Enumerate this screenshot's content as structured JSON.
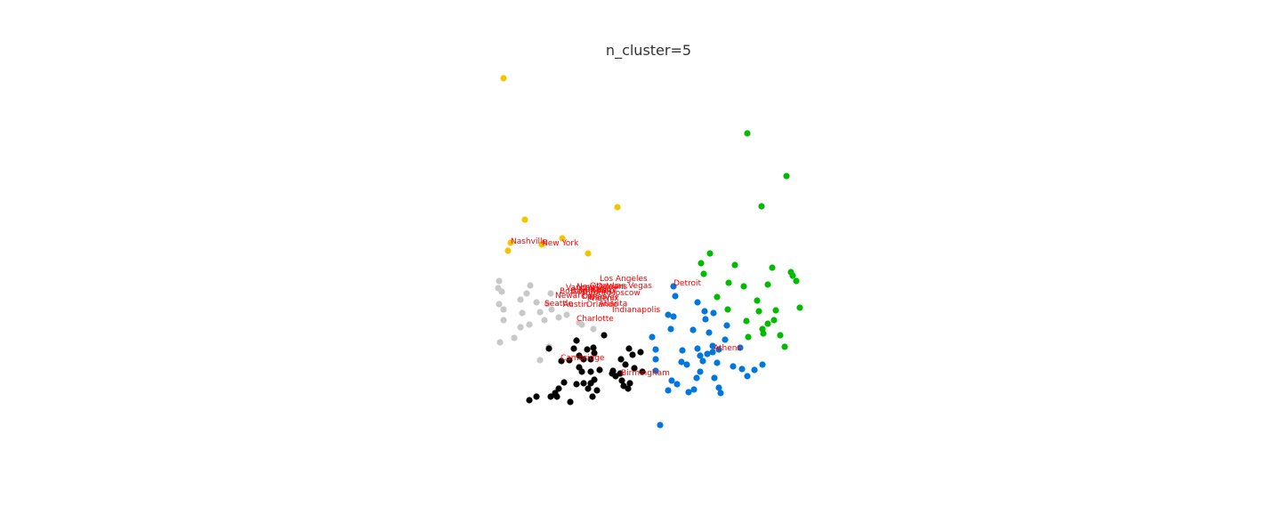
{
  "chart_data": {
    "type": "scatter",
    "title": "n_cluster=5",
    "xlabel": "",
    "ylabel": "",
    "axes_visible": false,
    "grid": false,
    "legend": "none",
    "xlim": [
      555,
      905
    ],
    "ylim": [
      485,
      80
    ],
    "label_color": "#ff0000",
    "series": [
      {
        "color": "#f5c400",
        "points": [
          [
            566,
            88
          ],
          [
            590,
            247
          ],
          [
            694,
            233
          ],
          [
            632,
            268
          ],
          [
            661,
            285
          ],
          [
            609,
            275
          ],
          [
            571,
            282
          ],
          [
            574,
            273
          ]
        ]
      },
      {
        "color": "#00bb00",
        "points": [
          [
            840,
            150
          ],
          [
            884,
            198
          ],
          [
            856,
            232
          ],
          [
            798,
            285
          ],
          [
            788,
            296
          ],
          [
            826,
            298
          ],
          [
            868,
            301
          ],
          [
            889,
            306
          ],
          [
            891,
            310
          ],
          [
            895,
            316
          ],
          [
            791,
            308
          ],
          [
            819,
            318
          ],
          [
            836,
            322
          ],
          [
            863,
            320
          ],
          [
            806,
            334
          ],
          [
            851,
            338
          ],
          [
            872,
            349
          ],
          [
            853,
            350
          ],
          [
            899,
            346
          ],
          [
            818,
            348
          ],
          [
            839,
            361
          ],
          [
            870,
            360
          ],
          [
            863,
            364
          ],
          [
            857,
            370
          ],
          [
            858,
            375
          ],
          [
            877,
            377
          ],
          [
            841,
            379
          ],
          [
            882,
            390
          ]
        ]
      },
      {
        "color": "#0077dd",
        "points": [
          [
            757,
            322
          ],
          [
            759,
            333
          ],
          [
            784,
            340
          ],
          [
            792,
            350
          ],
          [
            802,
            352
          ],
          [
            751,
            354
          ],
          [
            757,
            356
          ],
          [
            793,
            359
          ],
          [
            817,
            366
          ],
          [
            779,
            371
          ],
          [
            754,
            370
          ],
          [
            797,
            374
          ],
          [
            733,
            379
          ],
          [
            815,
            382
          ],
          [
            784,
            392
          ],
          [
            801,
            389
          ],
          [
            767,
            394
          ],
          [
            787,
            400
          ],
          [
            795,
            398
          ],
          [
            801,
            396
          ],
          [
            808,
            393
          ],
          [
            832,
            391
          ],
          [
            737,
            393
          ],
          [
            737,
            404
          ],
          [
            766,
            407
          ],
          [
            772,
            410
          ],
          [
            790,
            406
          ],
          [
            806,
            408
          ],
          [
            824,
            412
          ],
          [
            834,
            415
          ],
          [
            848,
            416
          ],
          [
            857,
            410
          ],
          [
            840,
            423
          ],
          [
            755,
            428
          ],
          [
            787,
            418
          ],
          [
            803,
            425
          ],
          [
            783,
            425
          ],
          [
            761,
            432
          ],
          [
            737,
            417
          ],
          [
            808,
            436
          ],
          [
            810,
            442
          ],
          [
            780,
            438
          ],
          [
            774,
            441
          ],
          [
            751,
            439
          ],
          [
            742,
            478
          ]
        ]
      },
      {
        "color": "#c8c8c8",
        "points": [
          [
            561,
            316
          ],
          [
            560,
            324
          ],
          [
            564,
            328
          ],
          [
            596,
            321
          ],
          [
            592,
            330
          ],
          [
            603,
            340
          ],
          [
            585,
            337
          ],
          [
            561,
            342
          ],
          [
            566,
            348
          ],
          [
            607,
            351
          ],
          [
            587,
            352
          ],
          [
            595,
            365
          ],
          [
            585,
            368
          ],
          [
            566,
            360
          ],
          [
            612,
            360
          ],
          [
            628,
            357
          ],
          [
            637,
            354
          ],
          [
            617,
            390
          ],
          [
            578,
            380
          ],
          [
            562,
            385
          ],
          [
            607,
            405
          ],
          [
            620,
            348
          ],
          [
            615,
            342
          ],
          [
            651,
            363
          ],
          [
            654,
            365
          ],
          [
            667,
            370
          ],
          [
            619,
            330
          ]
        ]
      },
      {
        "color": "#000000",
        "points": [
          [
            648,
            383
          ],
          [
            679,
            377
          ],
          [
            667,
            391
          ],
          [
            668,
            397
          ],
          [
            660,
            393
          ],
          [
            645,
            392
          ],
          [
            617,
            392
          ],
          [
            631,
            406
          ],
          [
            640,
            405
          ],
          [
            651,
            400
          ],
          [
            656,
            404
          ],
          [
            664,
            404
          ],
          [
            707,
            392
          ],
          [
            711,
            399
          ],
          [
            720,
            396
          ],
          [
            698,
            404
          ],
          [
            703,
            410
          ],
          [
            713,
            414
          ],
          [
            722,
            418
          ],
          [
            651,
            413
          ],
          [
            654,
            418
          ],
          [
            664,
            418
          ],
          [
            674,
            416
          ],
          [
            688,
            420
          ],
          [
            689,
            417
          ],
          [
            692,
            423
          ],
          [
            697,
            420
          ],
          [
            699,
            428
          ],
          [
            708,
            431
          ],
          [
            701,
            434
          ],
          [
            706,
            437
          ],
          [
            634,
            430
          ],
          [
            648,
            432
          ],
          [
            656,
            431
          ],
          [
            664,
            431
          ],
          [
            668,
            427
          ],
          [
            661,
            437
          ],
          [
            671,
            439
          ],
          [
            628,
            437
          ],
          [
            624,
            442
          ],
          [
            626,
            446
          ],
          [
            619,
            446
          ],
          [
            603,
            446
          ],
          [
            595,
            450
          ],
          [
            641,
            452
          ],
          [
            666,
            446
          ]
        ]
      }
    ],
    "annotations": [
      {
        "text": "Nashville",
        "x": 574,
        "y": 274
      },
      {
        "text": "New York",
        "x": 609,
        "y": 276
      },
      {
        "text": "Los Angeles",
        "x": 674,
        "y": 316
      },
      {
        "text": "Las Vegas",
        "x": 688,
        "y": 324
      },
      {
        "text": "Detroit",
        "x": 757,
        "y": 321
      },
      {
        "text": "Ottawa",
        "x": 663,
        "y": 324
      },
      {
        "text": "New Orleans",
        "x": 648,
        "y": 325
      },
      {
        "text": "Vancouver",
        "x": 636,
        "y": 326
      },
      {
        "text": "Boston",
        "x": 629,
        "y": 330
      },
      {
        "text": "Baltimore",
        "x": 641,
        "y": 330
      },
      {
        "text": "Chicago",
        "x": 651,
        "y": 328
      },
      {
        "text": "Miami",
        "x": 666,
        "y": 329
      },
      {
        "text": "Toronto",
        "x": 654,
        "y": 332
      },
      {
        "text": "Moscow",
        "x": 684,
        "y": 332
      },
      {
        "text": "Newark",
        "x": 624,
        "y": 335
      },
      {
        "text": "Dallas",
        "x": 654,
        "y": 336
      },
      {
        "text": "Denver",
        "x": 662,
        "y": 337
      },
      {
        "text": "Phoenix",
        "x": 660,
        "y": 338
      },
      {
        "text": "Seattle",
        "x": 612,
        "y": 344
      },
      {
        "text": "Austin",
        "x": 633,
        "y": 345
      },
      {
        "text": "Orlando",
        "x": 659,
        "y": 345
      },
      {
        "text": "Atlanta",
        "x": 673,
        "y": 344
      },
      {
        "text": "Indianapolis",
        "x": 688,
        "y": 351
      },
      {
        "text": "Charlotte",
        "x": 648,
        "y": 361
      },
      {
        "text": "Athens",
        "x": 802,
        "y": 394
      },
      {
        "text": "Cambridge",
        "x": 630,
        "y": 405
      },
      {
        "text": "Birmingham",
        "x": 698,
        "y": 422
      }
    ]
  }
}
